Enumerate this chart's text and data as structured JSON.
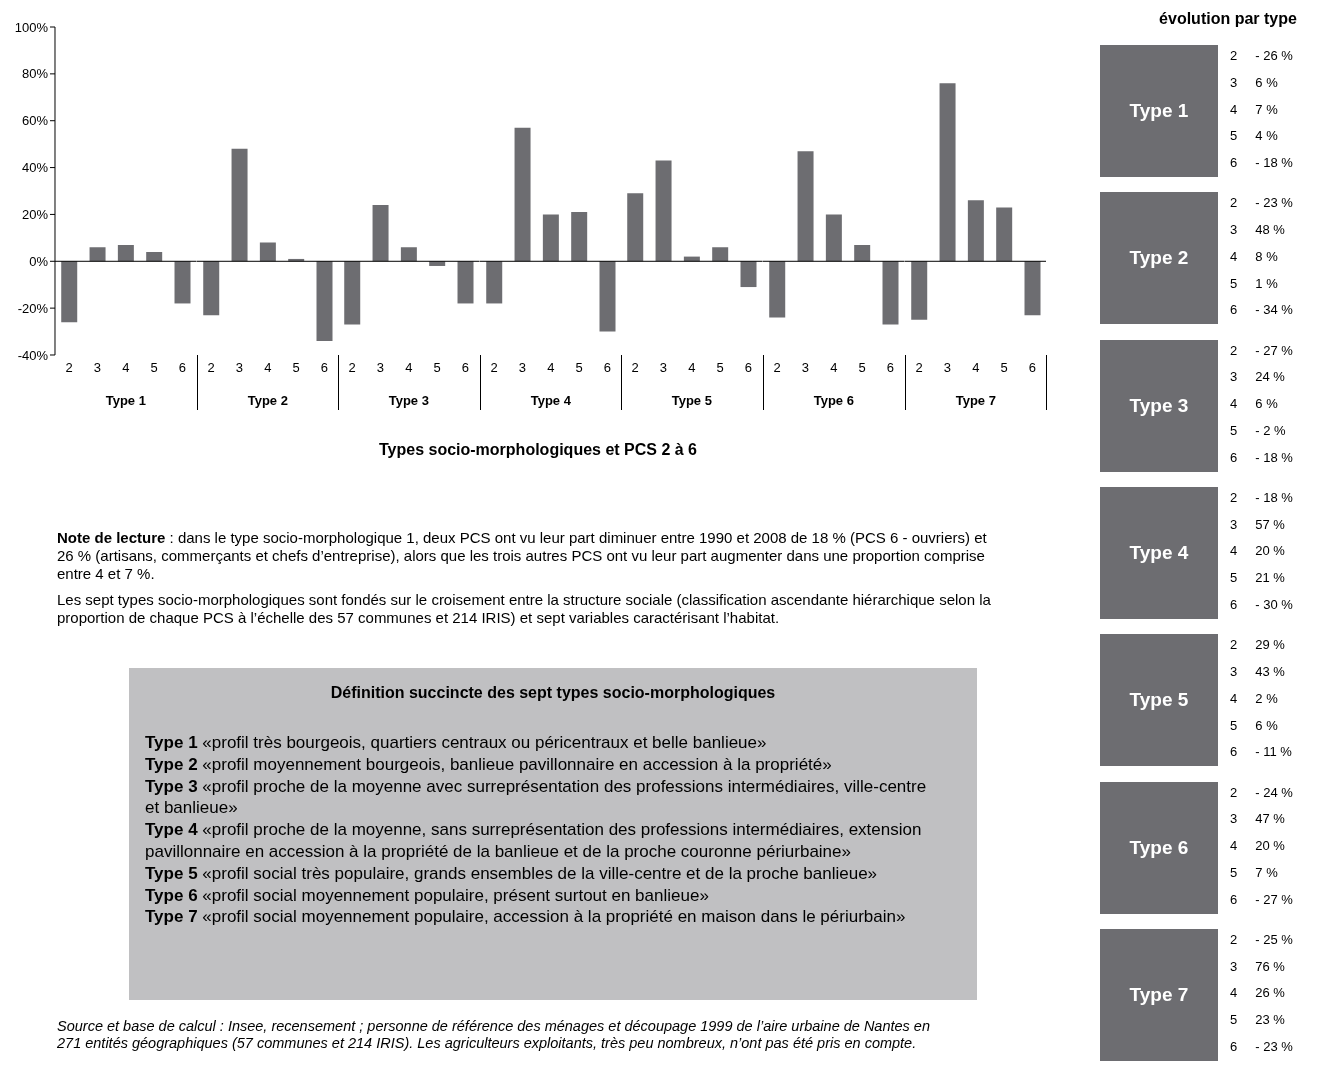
{
  "chart_data": [
    {
      "type": "bar",
      "xlabel": "Type 1",
      "categories": [
        "2",
        "3",
        "4",
        "5",
        "6"
      ],
      "values": [
        -26,
        6,
        7,
        4,
        -18
      ],
      "color": "#6d6d71",
      "ylim": [
        -40,
        100
      ],
      "yticks": [
        {
          "value": -40,
          "label": "-40%"
        },
        {
          "value": -20,
          "label": "-20%"
        },
        {
          "value": 0,
          "label": "0%"
        },
        {
          "value": 20,
          "label": "20%"
        },
        {
          "value": 40,
          "label": "40%"
        },
        {
          "value": 60,
          "label": "60%"
        },
        {
          "value": 80,
          "label": "80%"
        },
        {
          "value": 100,
          "label": "100%"
        }
      ],
      "ref_lines": [
        {
          "axis": "y",
          "value": 0
        }
      ]
    },
    {
      "type": "bar",
      "xlabel": "Type 2",
      "categories": [
        "2",
        "3",
        "4",
        "5",
        "6"
      ],
      "values": [
        -23,
        48,
        8,
        1,
        -34
      ],
      "color": "#6d6d71",
      "ylim": [
        -40,
        100
      ],
      "tick_labels": "x",
      "ref_lines": [
        {
          "axis": "y",
          "value": 0
        }
      ]
    },
    {
      "type": "bar",
      "xlabel": "Type 3",
      "categories": [
        "2",
        "3",
        "4",
        "5",
        "6"
      ],
      "values": [
        -27,
        24,
        6,
        -2,
        -18
      ],
      "color": "#6d6d71",
      "ylim": [
        -40,
        100
      ],
      "tick_labels": "x",
      "ref_lines": [
        {
          "axis": "y",
          "value": 0
        }
      ]
    },
    {
      "type": "bar",
      "xlabel": "Type 4",
      "categories": [
        "2",
        "3",
        "4",
        "5",
        "6"
      ],
      "values": [
        -18,
        57,
        20,
        21,
        -30
      ],
      "color": "#6d6d71",
      "ylim": [
        -40,
        100
      ],
      "tick_labels": "x",
      "ref_lines": [
        {
          "axis": "y",
          "value": 0
        }
      ]
    },
    {
      "type": "bar",
      "xlabel": "Type 5",
      "categories": [
        "2",
        "3",
        "4",
        "5",
        "6"
      ],
      "values": [
        29,
        43,
        2,
        6,
        -11
      ],
      "color": "#6d6d71",
      "ylim": [
        -40,
        100
      ],
      "tick_labels": "x",
      "ref_lines": [
        {
          "axis": "y",
          "value": 0
        }
      ]
    },
    {
      "type": "bar",
      "xlabel": "Type 6",
      "categories": [
        "2",
        "3",
        "4",
        "5",
        "6"
      ],
      "values": [
        -24,
        47,
        20,
        7,
        -27
      ],
      "color": "#6d6d71",
      "ylim": [
        -40,
        100
      ],
      "tick_labels": "x",
      "ref_lines": [
        {
          "axis": "y",
          "value": 0
        }
      ]
    },
    {
      "type": "bar",
      "xlabel": "Type 7",
      "categories": [
        "2",
        "3",
        "4",
        "5",
        "6"
      ],
      "values": [
        -25,
        76,
        26,
        23,
        -23
      ],
      "color": "#6d6d71",
      "ylim": [
        -40,
        100
      ],
      "tick_labels": "x",
      "ref_lines": [
        {
          "axis": "y",
          "value": 0
        }
      ]
    },
    {
      "type": "other",
      "title": "Type 1",
      "categories": [
        "2",
        "3",
        "4",
        "5",
        "6"
      ],
      "annotations": [
        "- 26 %",
        "6 %",
        "7 %",
        "4 %",
        "- 18 %"
      ]
    },
    {
      "type": "other",
      "title": "Type 2",
      "categories": [
        "2",
        "3",
        "4",
        "5",
        "6"
      ],
      "annotations": [
        "- 23 %",
        "48 %",
        "8 %",
        "1 %",
        "- 34 %"
      ]
    },
    {
      "type": "other",
      "title": "Type 3",
      "categories": [
        "2",
        "3",
        "4",
        "5",
        "6"
      ],
      "annotations": [
        "- 27 %",
        "24 %",
        "6 %",
        "- 2 %",
        "- 18 %"
      ]
    },
    {
      "type": "other",
      "title": "Type 4",
      "categories": [
        "2",
        "3",
        "4",
        "5",
        "6"
      ],
      "annotations": [
        "- 18 %",
        "57 %",
        "20 %",
        "21 %",
        "- 30 %"
      ]
    },
    {
      "type": "other",
      "title": "Type 5",
      "categories": [
        "2",
        "3",
        "4",
        "5",
        "6"
      ],
      "annotations": [
        "29 %",
        "43 %",
        "2 %",
        "6 %",
        "- 11 %"
      ]
    },
    {
      "type": "other",
      "title": "Type 6",
      "categories": [
        "2",
        "3",
        "4",
        "5",
        "6"
      ],
      "annotations": [
        "- 24 %",
        "47 %",
        "20 %",
        "7 %",
        "- 27 %"
      ]
    },
    {
      "type": "other",
      "title": "Type 7",
      "categories": [
        "2",
        "3",
        "4",
        "5",
        "6"
      ],
      "annotations": [
        "- 25 %",
        "76 %",
        "26 %",
        "23 %",
        "- 23 %"
      ]
    },
    {
      "type": "other",
      "title": "Définition succincte des sept types socio-morphologiques",
      "annotations": [
        "Types socio-morphologiques et PCS 2 à 6",
        "évolution par type",
        "Note de lecture : dans le type socio-morphologique 1, deux PCS ont vu leur part diminuer entre 1990 et 2008 de 18 % (PCS 6 - ouvriers) et 26 % (artisans, commerçants et chefs d’entreprise), alors que les trois autres PCS ont vu leur part augmenter dans une proportion comprise entre 4 et 7 %.",
        "Les sept types socio-morphologiques sont fondés sur le croisement entre la structure sociale (classification ascendante hiérarchique selon la proportion de chaque PCS à l’échelle des 57 communes et 214 IRIS) et sept variables caractérisant l’habitat.",
        "Type 1 «profil très bourgeois, quartiers centraux ou péricentraux et belle banlieue»",
        "Type 2 «profil moyennement bourgeois, banlieue pavillonnaire en accession à la propriété»",
        "Type 3 «profil proche de la moyenne avec surreprésentation des professions intermédiaires, ville-centre et banlieue»",
        "Type 4 «profil proche de la moyenne, sans surreprésentation des professions intermédiaires, extension pavillonnaire en accession à la propriété de la banlieue et de la proche couronne périurbaine»",
        "Type 5 «profil social très populaire, grands ensembles de la ville-centre et de la proche banlieue»",
        "Type 6 «profil social moyennement populaire, présent surtout en banlieue»",
        "Type 7 «profil social moyennement populaire, accession à la propriété en maison dans le périurbain»",
        "Source et base de calcul : Insee, recensement ; personne de référence des ménages et découpage 1999 de l’aire urbaine de Nantes en 271 entités géographiques (57 communes et 214 IRIS). Les agriculteurs exploitants, très peu nombreux, n’ont pas été pris en compte."
      ]
    }
  ]
}
